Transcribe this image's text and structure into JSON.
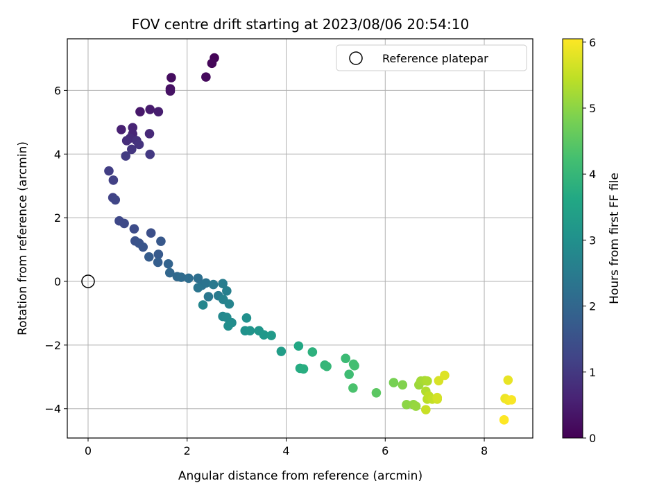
{
  "chart_data": {
    "type": "scatter",
    "title": "FOV centre drift starting at 2023/08/06 20:54:10",
    "xlabel": "Angular distance from reference (arcmin)",
    "ylabel": "Rotation from reference (arcmin)",
    "xlim": [
      -0.42,
      8.98
    ],
    "ylim": [
      -4.92,
      7.62
    ],
    "xticks": [
      0,
      2,
      4,
      6,
      8
    ],
    "xtick_labels": [
      "0",
      "2",
      "4",
      "6",
      "8"
    ],
    "yticks": [
      -4,
      -2,
      0,
      2,
      4,
      6
    ],
    "ytick_labels": [
      "−4",
      "−2",
      "0",
      "2",
      "4",
      "6"
    ],
    "grid": true,
    "legend": {
      "placement": "upper-right",
      "entries": [
        "Reference platepar"
      ]
    },
    "colorbar": {
      "label": "Hours from first FF file",
      "range": [
        0,
        6.05
      ],
      "ticks": [
        0,
        1,
        2,
        3,
        4,
        5,
        6
      ],
      "tick_labels": [
        "0",
        "1",
        "2",
        "3",
        "4",
        "5",
        "6"
      ],
      "colormap": "viridis"
    },
    "reference_point": {
      "name": "Reference platepar",
      "x": 0,
      "y": 0
    },
    "points": [
      [
        2.55,
        7.02,
        0.05
      ],
      [
        2.5,
        6.85,
        0.1
      ],
      [
        2.38,
        6.42,
        0.15
      ],
      [
        1.68,
        6.4,
        0.2
      ],
      [
        1.66,
        6.05,
        0.25
      ],
      [
        1.66,
        5.98,
        0.3
      ],
      [
        1.05,
        5.33,
        0.4
      ],
      [
        1.25,
        5.4,
        0.45
      ],
      [
        1.42,
        5.33,
        0.5
      ],
      [
        0.67,
        4.77,
        0.55
      ],
      [
        0.9,
        4.83,
        0.6
      ],
      [
        0.9,
        4.63,
        0.65
      ],
      [
        1.24,
        4.64,
        0.7
      ],
      [
        0.85,
        4.5,
        0.75
      ],
      [
        0.78,
        4.42,
        0.8
      ],
      [
        0.98,
        4.42,
        0.85
      ],
      [
        1.03,
        4.3,
        0.9
      ],
      [
        0.88,
        4.15,
        0.95
      ],
      [
        1.25,
        3.99,
        1.0
      ],
      [
        0.76,
        3.94,
        1.05
      ],
      [
        0.42,
        3.47,
        1.1
      ],
      [
        0.51,
        3.18,
        1.15
      ],
      [
        0.5,
        2.63,
        1.2
      ],
      [
        0.55,
        2.56,
        1.25
      ],
      [
        0.63,
        1.9,
        1.3
      ],
      [
        0.73,
        1.82,
        1.35
      ],
      [
        0.93,
        1.65,
        1.4
      ],
      [
        1.27,
        1.52,
        1.45
      ],
      [
        0.95,
        1.27,
        1.5
      ],
      [
        1.03,
        1.2,
        1.55
      ],
      [
        1.11,
        1.08,
        1.6
      ],
      [
        1.47,
        1.26,
        1.65
      ],
      [
        1.42,
        0.85,
        1.7
      ],
      [
        1.23,
        0.77,
        1.75
      ],
      [
        1.41,
        0.6,
        1.8
      ],
      [
        1.62,
        0.55,
        1.9
      ],
      [
        1.65,
        0.27,
        2.0
      ],
      [
        1.8,
        0.15,
        2.05
      ],
      [
        1.88,
        0.13,
        2.1
      ],
      [
        2.03,
        0.1,
        2.15
      ],
      [
        2.22,
        0.1,
        2.2
      ],
      [
        2.3,
        -0.12,
        2.25
      ],
      [
        2.38,
        -0.05,
        2.3
      ],
      [
        2.22,
        -0.2,
        2.35
      ],
      [
        2.43,
        -0.48,
        2.4
      ],
      [
        2.53,
        -0.1,
        2.45
      ],
      [
        2.63,
        -0.45,
        2.5
      ],
      [
        2.72,
        -0.07,
        2.55
      ],
      [
        2.8,
        -0.3,
        2.6
      ],
      [
        2.73,
        -0.57,
        2.65
      ],
      [
        2.85,
        -0.71,
        2.7
      ],
      [
        2.32,
        -0.74,
        2.75
      ],
      [
        2.72,
        -1.1,
        2.8
      ],
      [
        2.8,
        -1.13,
        2.85
      ],
      [
        2.9,
        -1.3,
        2.9
      ],
      [
        2.83,
        -1.4,
        2.95
      ],
      [
        3.2,
        -1.15,
        3.0
      ],
      [
        3.17,
        -1.55,
        3.05
      ],
      [
        3.27,
        -1.55,
        3.1
      ],
      [
        3.45,
        -1.55,
        3.15
      ],
      [
        3.55,
        -1.68,
        3.2
      ],
      [
        3.7,
        -1.7,
        3.25
      ],
      [
        3.9,
        -2.2,
        3.35
      ],
      [
        4.25,
        -2.03,
        3.6
      ],
      [
        4.28,
        -2.73,
        3.7
      ],
      [
        4.35,
        -2.75,
        3.75
      ],
      [
        4.53,
        -2.22,
        3.85
      ],
      [
        4.78,
        -2.63,
        3.95
      ],
      [
        4.82,
        -2.67,
        4.0
      ],
      [
        5.2,
        -2.42,
        4.1
      ],
      [
        5.27,
        -2.92,
        4.15
      ],
      [
        5.36,
        -2.6,
        4.2
      ],
      [
        5.38,
        -2.65,
        4.22
      ],
      [
        5.35,
        -3.35,
        4.3
      ],
      [
        5.82,
        -3.5,
        4.5
      ],
      [
        6.17,
        -3.18,
        4.8
      ],
      [
        6.35,
        -3.25,
        4.9
      ],
      [
        6.43,
        -3.87,
        5.0
      ],
      [
        6.57,
        -3.87,
        5.05
      ],
      [
        6.62,
        -3.92,
        5.1
      ],
      [
        6.68,
        -3.25,
        5.15
      ],
      [
        6.72,
        -3.13,
        5.2
      ],
      [
        6.8,
        -3.12,
        5.25
      ],
      [
        6.85,
        -3.13,
        5.3
      ],
      [
        6.82,
        -3.45,
        5.35
      ],
      [
        6.85,
        -3.7,
        5.4
      ],
      [
        6.88,
        -3.6,
        5.45
      ],
      [
        6.95,
        -3.7,
        5.5
      ],
      [
        6.82,
        -4.03,
        5.55
      ],
      [
        7.05,
        -3.7,
        5.6
      ],
      [
        7.05,
        -3.65,
        5.65
      ],
      [
        7.08,
        -3.12,
        5.7
      ],
      [
        7.2,
        -2.95,
        5.75
      ],
      [
        8.48,
        -3.1,
        5.85
      ],
      [
        8.42,
        -3.68,
        5.9
      ],
      [
        8.48,
        -3.73,
        5.95
      ],
      [
        8.55,
        -3.72,
        6.0
      ],
      [
        8.4,
        -4.35,
        6.05
      ]
    ]
  }
}
